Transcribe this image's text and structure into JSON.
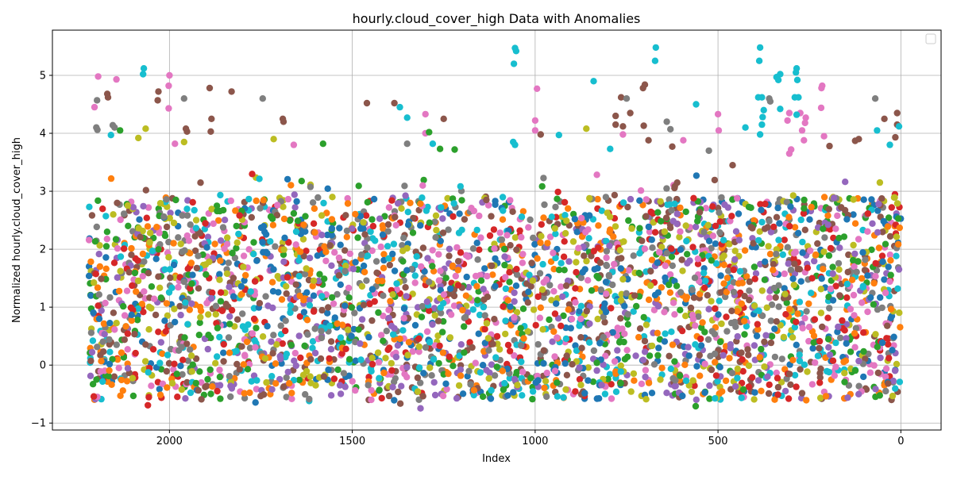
{
  "chart_data": {
    "type": "scatter",
    "title": "hourly.cloud_cover_high Data with Anomalies",
    "xlabel": "Index",
    "ylabel": "Normalized hourly.cloud_cover_high",
    "xlim": [
      2320,
      -110
    ],
    "ylim": [
      -1.12,
      5.78
    ],
    "x_axis_inverted": true,
    "grid": true,
    "legend": {
      "placement": "top-right",
      "entries": []
    },
    "x_ticks": [
      {
        "value": 2000,
        "label": "2000"
      },
      {
        "value": 1500,
        "label": "1500"
      },
      {
        "value": 1000,
        "label": "1000"
      },
      {
        "value": 500,
        "label": "500"
      },
      {
        "value": 0,
        "label": "0"
      }
    ],
    "y_ticks": [
      {
        "value": -1,
        "label": "−1"
      },
      {
        "value": 0,
        "label": "0"
      },
      {
        "value": 1,
        "label": "1"
      },
      {
        "value": 2,
        "label": "2"
      },
      {
        "value": 3,
        "label": "3"
      },
      {
        "value": 4,
        "label": "4"
      },
      {
        "value": 5,
        "label": "5"
      }
    ],
    "x_range": [
      0,
      2220
    ],
    "bulk_y_range": [
      -0.75,
      3.3
    ],
    "colors": [
      "#1f77b4",
      "#ff7f0e",
      "#2ca02c",
      "#d62728",
      "#9467bd",
      "#8c564b",
      "#e377c2",
      "#7f7f7f",
      "#bcbd22",
      "#17becf"
    ],
    "anomaly_points": [
      {
        "x": 2070,
        "y": 5.12,
        "color": "#17becf"
      },
      {
        "x": 2072,
        "y": 5.02,
        "color": "#17becf"
      },
      {
        "x": 2000,
        "y": 5.0,
        "color": "#e377c2"
      },
      {
        "x": 2195,
        "y": 4.98,
        "color": "#e377c2"
      },
      {
        "x": 2145,
        "y": 4.93,
        "color": "#e377c2"
      },
      {
        "x": 2002,
        "y": 4.82,
        "color": "#e377c2"
      },
      {
        "x": 1890,
        "y": 4.78,
        "color": "#8c564b"
      },
      {
        "x": 2030,
        "y": 4.72,
        "color": "#8c564b"
      },
      {
        "x": 1830,
        "y": 4.72,
        "color": "#8c564b"
      },
      {
        "x": 2170,
        "y": 4.68,
        "color": "#8c564b"
      },
      {
        "x": 2168,
        "y": 4.62,
        "color": "#8c564b"
      },
      {
        "x": 1745,
        "y": 4.6,
        "color": "#7f7f7f"
      },
      {
        "x": 2032,
        "y": 4.57,
        "color": "#8c564b"
      },
      {
        "x": 2198,
        "y": 4.57,
        "color": "#7f7f7f"
      },
      {
        "x": 1960,
        "y": 4.6,
        "color": "#7f7f7f"
      },
      {
        "x": 2002,
        "y": 4.43,
        "color": "#e377c2"
      },
      {
        "x": 2205,
        "y": 4.45,
        "color": "#e377c2"
      },
      {
        "x": 1885,
        "y": 4.25,
        "color": "#8c564b"
      },
      {
        "x": 1690,
        "y": 4.25,
        "color": "#8c564b"
      },
      {
        "x": 1688,
        "y": 4.2,
        "color": "#8c564b"
      },
      {
        "x": 2200,
        "y": 4.1,
        "color": "#7f7f7f"
      },
      {
        "x": 2197,
        "y": 4.06,
        "color": "#7f7f7f"
      },
      {
        "x": 2155,
        "y": 4.14,
        "color": "#7f7f7f"
      },
      {
        "x": 2150,
        "y": 4.1,
        "color": "#7f7f7f"
      },
      {
        "x": 1955,
        "y": 4.08,
        "color": "#8c564b"
      },
      {
        "x": 1952,
        "y": 4.03,
        "color": "#8c564b"
      },
      {
        "x": 1887,
        "y": 4.03,
        "color": "#8c564b"
      },
      {
        "x": 2065,
        "y": 4.08,
        "color": "#bcbd22"
      },
      {
        "x": 2085,
        "y": 3.92,
        "color": "#bcbd22"
      },
      {
        "x": 2135,
        "y": 4.05,
        "color": "#2ca02c"
      },
      {
        "x": 2160,
        "y": 3.97,
        "color": "#17becf"
      },
      {
        "x": 1985,
        "y": 3.82,
        "color": "#e377c2"
      },
      {
        "x": 1960,
        "y": 3.85,
        "color": "#bcbd22"
      },
      {
        "x": 1715,
        "y": 3.9,
        "color": "#bcbd22"
      },
      {
        "x": 1660,
        "y": 3.8,
        "color": "#e377c2"
      },
      {
        "x": 1580,
        "y": 3.82,
        "color": "#2ca02c"
      },
      {
        "x": 1460,
        "y": 4.52,
        "color": "#8c564b"
      },
      {
        "x": 1385,
        "y": 4.52,
        "color": "#8c564b"
      },
      {
        "x": 1370,
        "y": 4.45,
        "color": "#17becf"
      },
      {
        "x": 1350,
        "y": 4.27,
        "color": "#17becf"
      },
      {
        "x": 1350,
        "y": 3.82,
        "color": "#7f7f7f"
      },
      {
        "x": 1300,
        "y": 4.33,
        "color": "#e377c2"
      },
      {
        "x": 1300,
        "y": 4.0,
        "color": "#e377c2"
      },
      {
        "x": 1290,
        "y": 4.02,
        "color": "#2ca02c"
      },
      {
        "x": 1250,
        "y": 4.25,
        "color": "#8c564b"
      },
      {
        "x": 1280,
        "y": 3.82,
        "color": "#17becf"
      },
      {
        "x": 1260,
        "y": 3.73,
        "color": "#2ca02c"
      },
      {
        "x": 1220,
        "y": 3.72,
        "color": "#2ca02c"
      },
      {
        "x": 1055,
        "y": 5.47,
        "color": "#17becf"
      },
      {
        "x": 1052,
        "y": 5.42,
        "color": "#17becf"
      },
      {
        "x": 1058,
        "y": 5.2,
        "color": "#17becf"
      },
      {
        "x": 995,
        "y": 4.77,
        "color": "#e377c2"
      },
      {
        "x": 1000,
        "y": 4.22,
        "color": "#e377c2"
      },
      {
        "x": 1000,
        "y": 4.05,
        "color": "#e377c2"
      },
      {
        "x": 985,
        "y": 3.98,
        "color": "#8c564b"
      },
      {
        "x": 1060,
        "y": 3.85,
        "color": "#17becf"
      },
      {
        "x": 1055,
        "y": 3.8,
        "color": "#17becf"
      },
      {
        "x": 935,
        "y": 3.97,
        "color": "#17becf"
      },
      {
        "x": 840,
        "y": 4.9,
        "color": "#17becf"
      },
      {
        "x": 860,
        "y": 4.08,
        "color": "#bcbd22"
      },
      {
        "x": 765,
        "y": 4.62,
        "color": "#8c564b"
      },
      {
        "x": 750,
        "y": 4.6,
        "color": "#7f7f7f"
      },
      {
        "x": 740,
        "y": 4.35,
        "color": "#8c564b"
      },
      {
        "x": 780,
        "y": 4.3,
        "color": "#8c564b"
      },
      {
        "x": 780,
        "y": 4.15,
        "color": "#8c564b"
      },
      {
        "x": 760,
        "y": 4.12,
        "color": "#8c564b"
      },
      {
        "x": 760,
        "y": 3.98,
        "color": "#e377c2"
      },
      {
        "x": 795,
        "y": 3.73,
        "color": "#17becf"
      },
      {
        "x": 700,
        "y": 4.84,
        "color": "#8c564b"
      },
      {
        "x": 705,
        "y": 4.78,
        "color": "#8c564b"
      },
      {
        "x": 703,
        "y": 4.13,
        "color": "#8c564b"
      },
      {
        "x": 670,
        "y": 5.48,
        "color": "#17becf"
      },
      {
        "x": 672,
        "y": 5.25,
        "color": "#17becf"
      },
      {
        "x": 690,
        "y": 3.88,
        "color": "#8c564b"
      },
      {
        "x": 640,
        "y": 4.2,
        "color": "#7f7f7f"
      },
      {
        "x": 630,
        "y": 4.07,
        "color": "#7f7f7f"
      },
      {
        "x": 625,
        "y": 3.77,
        "color": "#8c564b"
      },
      {
        "x": 560,
        "y": 4.5,
        "color": "#17becf"
      },
      {
        "x": 595,
        "y": 3.88,
        "color": "#e377c2"
      },
      {
        "x": 500,
        "y": 4.33,
        "color": "#e377c2"
      },
      {
        "x": 498,
        "y": 4.05,
        "color": "#e377c2"
      },
      {
        "x": 525,
        "y": 3.7,
        "color": "#7f7f7f"
      },
      {
        "x": 460,
        "y": 3.45,
        "color": "#8c564b"
      },
      {
        "x": 425,
        "y": 4.1,
        "color": "#17becf"
      },
      {
        "x": 385,
        "y": 5.48,
        "color": "#17becf"
      },
      {
        "x": 387,
        "y": 5.25,
        "color": "#17becf"
      },
      {
        "x": 380,
        "y": 4.62,
        "color": "#17becf"
      },
      {
        "x": 390,
        "y": 4.62,
        "color": "#17becf"
      },
      {
        "x": 375,
        "y": 4.4,
        "color": "#17becf"
      },
      {
        "x": 378,
        "y": 4.28,
        "color": "#17becf"
      },
      {
        "x": 380,
        "y": 4.15,
        "color": "#17becf"
      },
      {
        "x": 385,
        "y": 3.98,
        "color": "#17becf"
      },
      {
        "x": 360,
        "y": 4.6,
        "color": "#7f7f7f"
      },
      {
        "x": 357,
        "y": 4.55,
        "color": "#7f7f7f"
      },
      {
        "x": 340,
        "y": 4.97,
        "color": "#17becf"
      },
      {
        "x": 330,
        "y": 5.02,
        "color": "#17becf"
      },
      {
        "x": 335,
        "y": 4.92,
        "color": "#17becf"
      },
      {
        "x": 330,
        "y": 4.42,
        "color": "#17becf"
      },
      {
        "x": 310,
        "y": 4.22,
        "color": "#e377c2"
      },
      {
        "x": 305,
        "y": 4.35,
        "color": "#e377c2"
      },
      {
        "x": 300,
        "y": 3.72,
        "color": "#e377c2"
      },
      {
        "x": 305,
        "y": 3.65,
        "color": "#e377c2"
      },
      {
        "x": 285,
        "y": 5.12,
        "color": "#17becf"
      },
      {
        "x": 287,
        "y": 5.05,
        "color": "#17becf"
      },
      {
        "x": 283,
        "y": 4.92,
        "color": "#17becf"
      },
      {
        "x": 290,
        "y": 4.62,
        "color": "#17becf"
      },
      {
        "x": 280,
        "y": 4.62,
        "color": "#17becf"
      },
      {
        "x": 275,
        "y": 4.35,
        "color": "#e377c2"
      },
      {
        "x": 285,
        "y": 4.32,
        "color": "#17becf"
      },
      {
        "x": 260,
        "y": 4.27,
        "color": "#e377c2"
      },
      {
        "x": 262,
        "y": 4.18,
        "color": "#e377c2"
      },
      {
        "x": 270,
        "y": 4.05,
        "color": "#e377c2"
      },
      {
        "x": 265,
        "y": 3.88,
        "color": "#e377c2"
      },
      {
        "x": 215,
        "y": 4.82,
        "color": "#e377c2"
      },
      {
        "x": 217,
        "y": 4.78,
        "color": "#e377c2"
      },
      {
        "x": 218,
        "y": 4.44,
        "color": "#e377c2"
      },
      {
        "x": 210,
        "y": 3.95,
        "color": "#e377c2"
      },
      {
        "x": 195,
        "y": 3.78,
        "color": "#8c564b"
      },
      {
        "x": 125,
        "y": 3.87,
        "color": "#8c564b"
      },
      {
        "x": 115,
        "y": 3.9,
        "color": "#8c564b"
      },
      {
        "x": 70,
        "y": 4.6,
        "color": "#7f7f7f"
      },
      {
        "x": 65,
        "y": 4.05,
        "color": "#17becf"
      },
      {
        "x": 45,
        "y": 4.25,
        "color": "#8c564b"
      },
      {
        "x": 10,
        "y": 4.35,
        "color": "#8c564b"
      },
      {
        "x": 10,
        "y": 4.15,
        "color": "#8c564b"
      },
      {
        "x": 15,
        "y": 3.93,
        "color": "#8c564b"
      },
      {
        "x": 5,
        "y": 4.12,
        "color": "#17becf"
      },
      {
        "x": 30,
        "y": 3.8,
        "color": "#17becf"
      }
    ]
  }
}
